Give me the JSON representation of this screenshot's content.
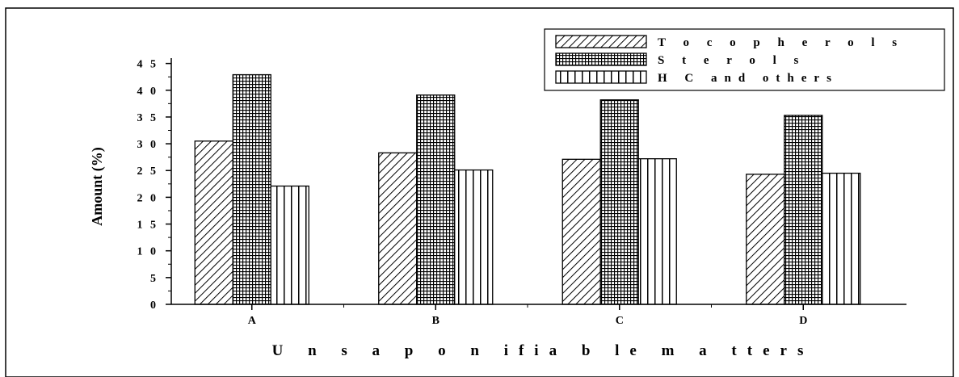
{
  "chart_data": {
    "type": "bar",
    "title": "",
    "xlabel": "U n s a p o n ifia b le   m a tters",
    "ylabel": "Amount (%)",
    "categories": [
      "A",
      "B",
      "C",
      "D"
    ],
    "ylim": [
      0,
      46
    ],
    "yticks": [
      0,
      5,
      10,
      15,
      20,
      25,
      30,
      35,
      40,
      45
    ],
    "ytick_labels": [
      "0",
      "5",
      "1 0",
      "1 5",
      "2 0",
      "2 5",
      "3 0",
      "3 5",
      "4 0",
      "4 5"
    ],
    "series": [
      {
        "name": "T o c o p h e r o l s",
        "pattern": "diagonal-hatch",
        "values": [
          30.5,
          28.3,
          27.1,
          24.3
        ]
      },
      {
        "name": "S t e r o l s",
        "pattern": "grid-hatch",
        "values": [
          42.9,
          39.1,
          38.2,
          35.3
        ]
      },
      {
        "name": "H C   and  others",
        "pattern": "vertical-hatch",
        "values": [
          22.1,
          25.1,
          27.2,
          24.5
        ]
      }
    ],
    "legend_position": "top-right",
    "grid": false
  }
}
